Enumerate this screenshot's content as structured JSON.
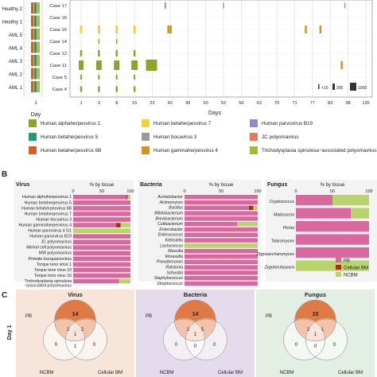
{
  "panelA": {
    "left_rows": [
      "Healthy 2",
      "Healthy 1",
      "AML 5",
      "AML 4",
      "AML 3",
      "AML 2",
      "AML 1"
    ],
    "left_xtick": "1",
    "left_xlabel": "Day",
    "cases": [
      "Case 17",
      "Case 16",
      "Case 15",
      "Case 14",
      "Case 12",
      "Case 11",
      "Case 5",
      "Case 4"
    ],
    "days": [
      "1",
      "3",
      "8",
      "15",
      "22",
      "42",
      "49",
      "50",
      "52",
      "56",
      "63",
      "70",
      "71",
      "77",
      "83",
      "98",
      "126"
    ],
    "days_label": "Days",
    "size_legend": [
      "<10",
      "200",
      "1000"
    ],
    "left_colors": [
      [
        "#d95f02",
        "#1b9e77",
        "#e6ab02"
      ],
      [
        "#d95f02",
        "#1b9e77",
        "#e6ab02"
      ],
      [
        "#d95f02",
        "#1b9e77",
        "#e6ab02"
      ],
      [
        "#d95f02",
        "#1b9e77",
        "#e6ab02"
      ],
      [
        "#d95f02",
        "#1b9e77",
        "#e6ab02"
      ],
      [
        "#d95f02",
        "#1b9e77",
        "#e6ab02"
      ],
      [
        "#d95f02",
        "#1b9e77",
        "#e6ab02"
      ]
    ]
  },
  "legend": [
    {
      "label": "Human alphaherpesvirus 1",
      "color": "#8fa32a"
    },
    {
      "label": "Human betaherpesvirus 7",
      "color": "#f0d33c"
    },
    {
      "label": "Human parvovirus B19",
      "color": "#8b8fc7"
    },
    {
      "label": "Human betaherpesvirus 5",
      "color": "#1f9e75"
    },
    {
      "label": "Human bocavirus 3",
      "color": "#9a9a9a"
    },
    {
      "label": "JC polyomavirus",
      "color": "#e47b5a"
    },
    {
      "label": "Human betaherpesvirus 6B",
      "color": "#d65f27"
    },
    {
      "label": "Human gammaherpesvirus 4",
      "color": "#d98e27"
    },
    {
      "label": "Trichodysplasia spinulosa−associated polyomavirus",
      "color": "#a7b83b"
    }
  ],
  "panelB": {
    "label": "B",
    "virus": {
      "title": "Virus",
      "axis_title": "% by tissue",
      "ticks": [
        "0",
        "50",
        "100"
      ],
      "rows": [
        "Human alphaherpesvirus 1",
        "Human betaherpesvirus 5",
        "Human betaherpesvirus 6B",
        "Human betaherpesvirus 7",
        "Human bocavirus 3",
        "Human gammaherpesvirus 4",
        "Human parvovirus 4 G1",
        "Human parvovirus B19",
        "JC polyomavirus",
        "Merkel cell polyomavirus",
        "MW polyomavirus",
        "Primate bocaparvovirus",
        "Torque teno virus 1",
        "Torque teno virus 10",
        "Torque teno virus 16",
        "Trichodysplasia spinulosa",
        "−associated polyomavirus"
      ]
    },
    "bacteria": {
      "title": "Bacteria",
      "axis_title": "% by tissue",
      "ticks": [
        "0",
        "50",
        "100"
      ],
      "rows": [
        "Acinetobacter",
        "Actinomyces",
        "Bacillus",
        "Bifidobacterium",
        "Brevibacterium",
        "Cutibacterium",
        "Enterobacter",
        "Enterococcus",
        "Klebsiella",
        "Lactococcus",
        "Massilia",
        "Moraxella",
        "Pseudomonas",
        "Ralstonia",
        "Schwalia",
        "Staphylococcus",
        "Streptococcus"
      ]
    },
    "fungus": {
      "title": "Fungus",
      "axis_title": "% by tissue",
      "ticks": [
        "0",
        "50",
        "100"
      ],
      "rows": [
        "Cryptococcus",
        "Malassezia",
        "Pichia",
        "Talaromyces",
        "Zygosaccharomyces",
        "Zygotorulaspora"
      ]
    },
    "tissue_legend": [
      {
        "label": "PB",
        "color": "#d9689e"
      },
      {
        "label": "Cellular BM",
        "color": "#b5281a"
      },
      {
        "label": "NCBM",
        "color": "#b9d46a"
      }
    ]
  },
  "chart_data": [
    {
      "type": "bar",
      "title": "Virus",
      "xlabel": "% by tissue",
      "xlim": [
        0,
        100
      ],
      "categories": [
        "Human alphaherpesvirus 1",
        "Human betaherpesvirus 5",
        "Human betaherpesvirus 6B",
        "Human betaherpesvirus 7",
        "Human bocavirus 3",
        "Human gammaherpesvirus 4",
        "Human parvovirus 4 G1",
        "Human parvovirus B19",
        "JC polyomavirus",
        "Merkel cell polyomavirus",
        "MW polyomavirus",
        "Primate bocaparvovirus",
        "Torque teno virus 1",
        "Torque teno virus 10",
        "Torque teno virus 16",
        "Trichodysplasia spinulosa −associated polyomavirus"
      ],
      "series": [
        {
          "name": "PB",
          "values": [
            93,
            100,
            100,
            100,
            100,
            75,
            0,
            100,
            100,
            100,
            100,
            100,
            100,
            100,
            100,
            80
          ]
        },
        {
          "name": "Cellular BM",
          "values": [
            2,
            0,
            0,
            0,
            0,
            8,
            0,
            0,
            0,
            0,
            0,
            0,
            0,
            0,
            0,
            0
          ]
        },
        {
          "name": "NCBM",
          "values": [
            5,
            0,
            0,
            0,
            0,
            17,
            100,
            0,
            0,
            0,
            0,
            0,
            0,
            0,
            0,
            20
          ]
        }
      ]
    },
    {
      "type": "bar",
      "title": "Bacteria",
      "xlabel": "% by tissue",
      "xlim": [
        0,
        100
      ],
      "categories": [
        "Acinetobacter",
        "Actinomyces",
        "Bacillus",
        "Bifidobacterium",
        "Brevibacterium",
        "Cutibacterium",
        "Enterobacter",
        "Enterococcus",
        "Klebsiella",
        "Lactococcus",
        "Massilia",
        "Moraxella",
        "Pseudomonas",
        "Ralstonia",
        "Schwalia",
        "Staphylococcus",
        "Streptococcus"
      ],
      "series": [
        {
          "name": "PB",
          "values": [
            100,
            100,
            88,
            100,
            100,
            72,
            100,
            100,
            100,
            0,
            100,
            100,
            100,
            100,
            100,
            100,
            100
          ]
        },
        {
          "name": "Cellular BM",
          "values": [
            0,
            0,
            6,
            0,
            0,
            0,
            0,
            0,
            0,
            0,
            0,
            0,
            0,
            0,
            0,
            0,
            0
          ]
        },
        {
          "name": "NCBM",
          "values": [
            0,
            0,
            6,
            0,
            0,
            28,
            0,
            0,
            0,
            100,
            0,
            0,
            0,
            0,
            0,
            0,
            0
          ]
        }
      ]
    },
    {
      "type": "bar",
      "title": "Fungus",
      "xlabel": "% by tissue",
      "xlim": [
        0,
        100
      ],
      "categories": [
        "Cryptococcus",
        "Malassezia",
        "Pichia",
        "Talaromyces",
        "Zygosaccharomyces",
        "Zygotorulaspora"
      ],
      "series": [
        {
          "name": "PB",
          "values": [
            50,
            75,
            100,
            100,
            100,
            0
          ]
        },
        {
          "name": "Cellular BM",
          "values": [
            0,
            0,
            0,
            0,
            0,
            0
          ]
        },
        {
          "name": "NCBM",
          "values": [
            50,
            25,
            0,
            0,
            0,
            100
          ]
        }
      ]
    }
  ],
  "panelC": {
    "label": "C",
    "day_label": "Day 1",
    "boxes": [
      {
        "title": "Virus",
        "bg": "#f6e5d8",
        "top": "14",
        "pb_bm": "2",
        "pb_nc": "2",
        "center": "1",
        "nc": "0",
        "bm": "0",
        "nc_bm": "1"
      },
      {
        "title": "Bacteria",
        "bg": "#e4dbed",
        "top": "14",
        "pb_bm": "5",
        "pb_nc": "2",
        "center": "1",
        "nc": "0",
        "bm": "0",
        "nc_bm": "0"
      },
      {
        "title": "Fungus",
        "bg": "#e2efe2",
        "top": "10",
        "pb_bm": "1",
        "pb_nc": "2",
        "center": "1",
        "nc": "0",
        "bm": "0",
        "nc_bm": "0"
      }
    ],
    "set_labels": {
      "pb": "PB",
      "ncbm": "NCBM",
      "bm": "Cellular BM"
    }
  }
}
